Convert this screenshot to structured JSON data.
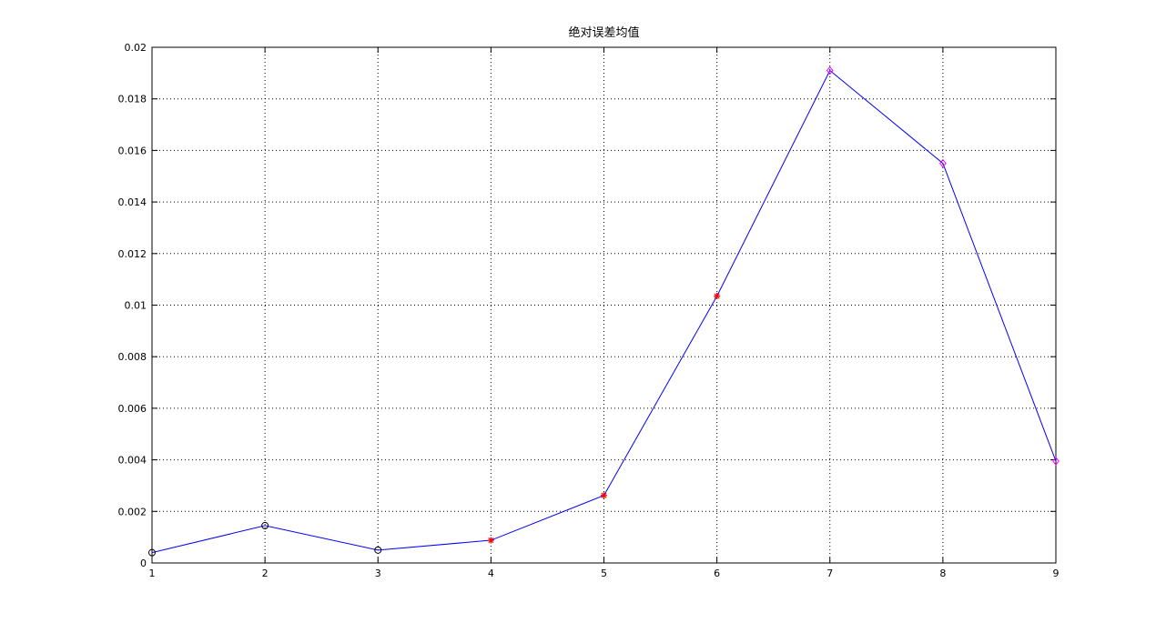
{
  "chart_data": {
    "type": "line",
    "title": "绝对误差均值",
    "xlabel": "",
    "ylabel": "",
    "xlim": [
      1,
      9
    ],
    "ylim": [
      0,
      0.02
    ],
    "xticks": [
      "1",
      "2",
      "3",
      "4",
      "5",
      "6",
      "7",
      "8",
      "9"
    ],
    "yticks": [
      "0",
      "0.002",
      "0.004",
      "0.006",
      "0.008",
      "0.01",
      "0.012",
      "0.014",
      "0.016",
      "0.018",
      "0.02"
    ],
    "grid": true,
    "legend": "none",
    "series": [
      {
        "color": "#0000ff",
        "x": [
          1,
          2,
          3,
          4,
          5,
          6,
          7,
          8,
          9
        ],
        "y": [
          0.0004,
          0.00145,
          0.0005,
          0.00088,
          0.00262,
          0.01035,
          0.0191,
          0.0155,
          0.00395
        ],
        "markers": [
          {
            "x": [
              1,
              2,
              3
            ],
            "symbol": "circle",
            "color": "#000000"
          },
          {
            "x": [
              4,
              5,
              6
            ],
            "symbol": "asterisk",
            "color": "#ff0000"
          },
          {
            "x": [
              7,
              8,
              9
            ],
            "symbol": "diamond",
            "color": "#ff00ff"
          }
        ]
      }
    ]
  }
}
